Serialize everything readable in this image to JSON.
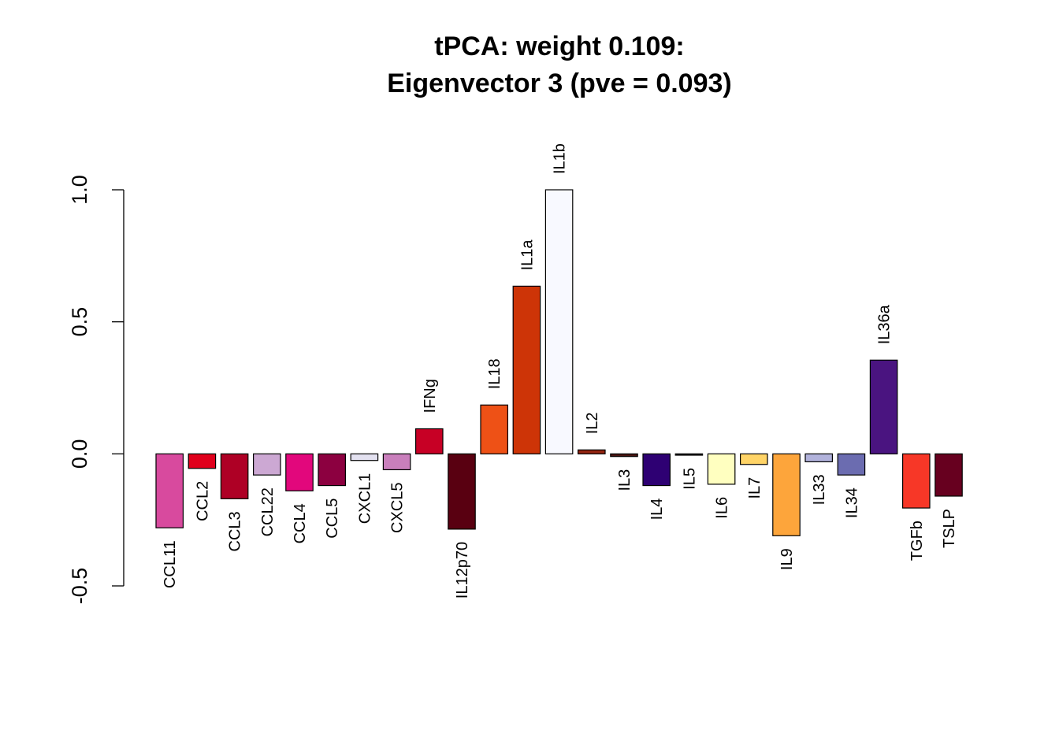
{
  "chart_data": {
    "type": "bar",
    "title": "tPCA: weight 0.109:",
    "subtitle": "Eigenvector 3 (pve = 0.093)",
    "xlabel": "",
    "ylabel": "",
    "ylim": [
      -0.5,
      1.0
    ],
    "yticks": [
      "-0.5",
      "0.0",
      "0.5",
      "1.0"
    ],
    "grid": false,
    "categories": [
      "CCL11",
      "CCL2",
      "CCL3",
      "CCL22",
      "CCL4",
      "CCL5",
      "CXCL1",
      "CXCL5",
      "IFNg",
      "IL12p70",
      "IL18",
      "IL1a",
      "IL1b",
      "IL2",
      "IL3",
      "IL4",
      "IL5",
      "IL6",
      "IL7",
      "IL9",
      "IL33",
      "IL34",
      "IL36a",
      "TGFb",
      "TSLP"
    ],
    "values": [
      -0.28,
      -0.055,
      -0.17,
      -0.08,
      -0.14,
      -0.12,
      -0.025,
      -0.06,
      0.095,
      -0.285,
      0.185,
      0.635,
      1.0,
      0.015,
      -0.01,
      -0.12,
      -0.005,
      -0.115,
      -0.04,
      -0.31,
      -0.03,
      -0.08,
      0.355,
      -0.205,
      -0.16
    ],
    "colors": [
      "#D84A9E",
      "#E0001C",
      "#AE0025",
      "#CCA8D3",
      "#E2077C",
      "#8C0040",
      "#E3E1F0",
      "#C97FBC",
      "#C70025",
      "#590011",
      "#EE5116",
      "#CD3407",
      "#F8F9FF",
      "#932511",
      "#481410",
      "#2E0073",
      "#2D0C18",
      "#FFFFC0",
      "#FFD467",
      "#FDA53B",
      "#B1B2DB",
      "#6B6CB0",
      "#4A1480",
      "#F73727",
      "#67001F"
    ]
  }
}
